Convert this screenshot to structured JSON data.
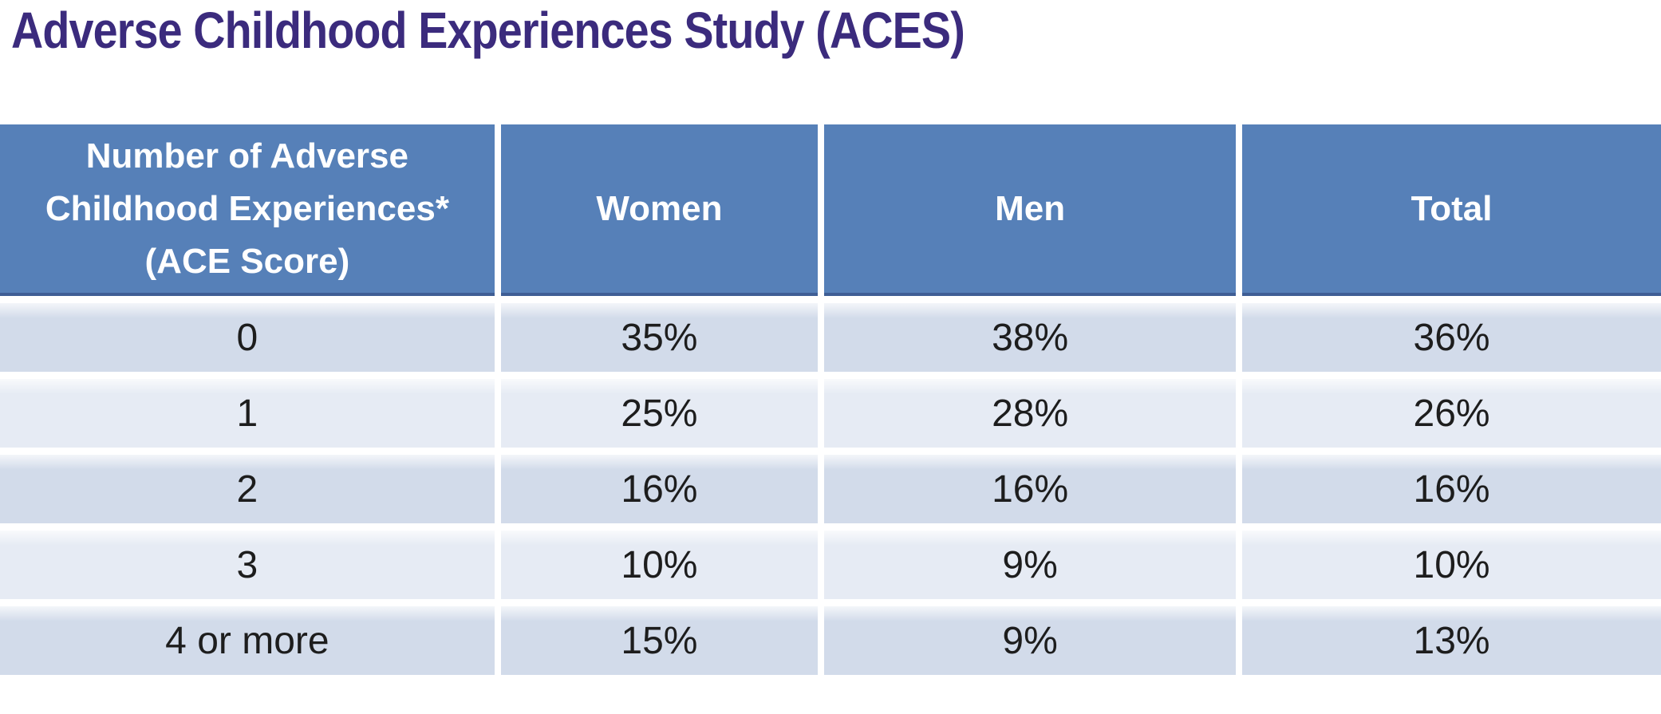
{
  "page": {
    "title": "Adverse Childhood Experiences Study (ACES)"
  },
  "colors": {
    "title_text": "#3b2b7d",
    "header_bg": "#5680b8",
    "header_edge": "#3f5e95",
    "header_text": "#ffffff",
    "row_dark_bg": "#d2dbea",
    "row_light_bg": "#e6ebf4",
    "data_text": "#1d1d1d",
    "page_bg": "#ffffff"
  },
  "chart_data": {
    "type": "table",
    "title": "Adverse Childhood Experiences Study (ACES)",
    "columns": [
      "Number of Adverse Childhood Experiences* (ACE Score)",
      "Women",
      "Men",
      "Total"
    ],
    "rows": [
      {
        "score": "0",
        "women": "35%",
        "men": "38%",
        "total": "36%"
      },
      {
        "score": "1",
        "women": "25%",
        "men": "28%",
        "total": "26%"
      },
      {
        "score": "2",
        "women": "16%",
        "men": "16%",
        "total": "16%"
      },
      {
        "score": "3",
        "women": "10%",
        "men": "9%",
        "total": "10%"
      },
      {
        "score": "4 or more",
        "women": "15%",
        "men": "9%",
        "total": "13%"
      }
    ],
    "values_unit": "percent of study participants",
    "series": [
      {
        "name": "Women",
        "values": [
          35,
          25,
          16,
          10,
          15
        ]
      },
      {
        "name": "Men",
        "values": [
          38,
          28,
          16,
          9,
          9
        ]
      },
      {
        "name": "Total",
        "values": [
          36,
          26,
          16,
          10,
          13
        ]
      }
    ],
    "categories": [
      "0",
      "1",
      "2",
      "3",
      "4 or more"
    ]
  }
}
